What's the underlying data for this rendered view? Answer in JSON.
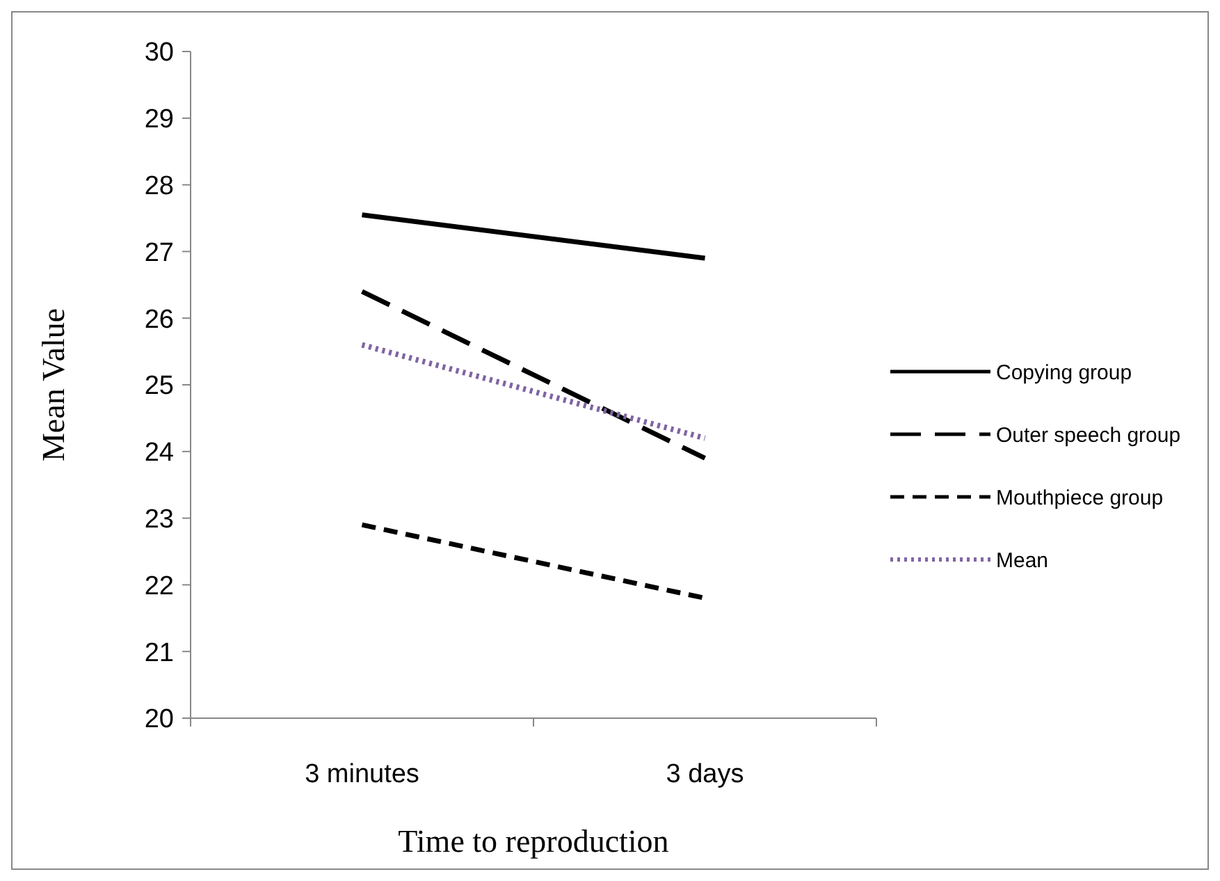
{
  "chart_data": {
    "type": "line",
    "xlabel": "Time to reproduction",
    "ylabel": "Mean Value",
    "categories": [
      "3 minutes",
      "3 days"
    ],
    "ylim": [
      20,
      30
    ],
    "yticks": [
      20,
      21,
      22,
      23,
      24,
      25,
      26,
      27,
      28,
      29,
      30
    ],
    "grid": false,
    "legend": "right",
    "marker": "none",
    "series": [
      {
        "name": "Copying group",
        "color": "#000000",
        "line_style": "solid",
        "values": [
          27.55,
          26.9
        ]
      },
      {
        "name": "Outer speech group",
        "color": "#000000",
        "line_style": "longdash",
        "values": [
          26.4,
          23.9
        ]
      },
      {
        "name": "Mouthpiece group",
        "color": "#000000",
        "line_style": "dashed",
        "values": [
          22.9,
          21.8
        ]
      },
      {
        "name": "Mean",
        "color": "#8064a2",
        "line_style": "dotted",
        "values": [
          25.6,
          24.2
        ]
      }
    ]
  }
}
